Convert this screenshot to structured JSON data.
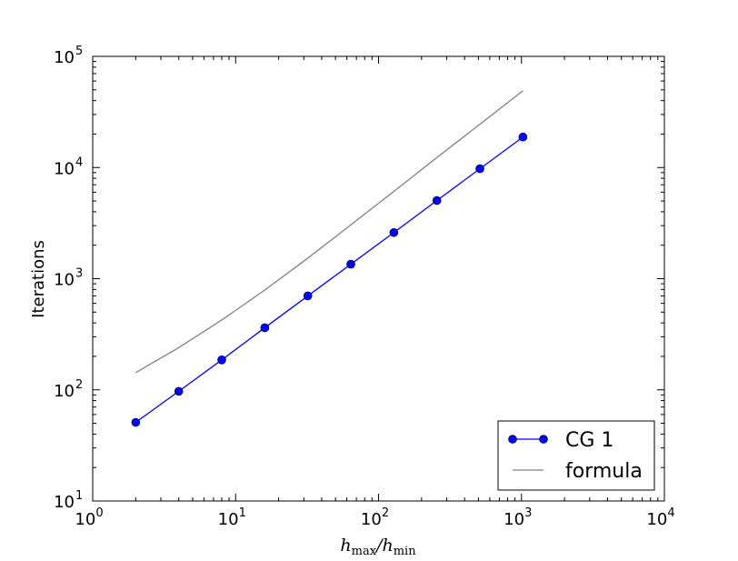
{
  "chart_data": {
    "type": "line",
    "xscale": "log",
    "yscale": "log",
    "xlim": [
      1,
      10000
    ],
    "ylim": [
      10,
      100000
    ],
    "grid": false,
    "legend_placement": "lower-right",
    "xlabel": {
      "h": "h",
      "max": "max",
      "slash": "/",
      "min": "min"
    },
    "ylabel": "Iterations",
    "x_ticks": [
      {
        "base": "10",
        "exp": "0"
      },
      {
        "base": "10",
        "exp": "1"
      },
      {
        "base": "10",
        "exp": "2"
      },
      {
        "base": "10",
        "exp": "3"
      },
      {
        "base": "10",
        "exp": "4"
      }
    ],
    "y_ticks": [
      {
        "base": "10",
        "exp": "1"
      },
      {
        "base": "10",
        "exp": "2"
      },
      {
        "base": "10",
        "exp": "3"
      },
      {
        "base": "10",
        "exp": "4"
      },
      {
        "base": "10",
        "exp": "5"
      }
    ],
    "series": [
      {
        "name": "CG 1",
        "color": "#0000ff",
        "marker": "circle",
        "x": [
          2,
          4,
          8,
          16,
          32,
          64,
          128,
          256,
          512,
          1024
        ],
        "y": [
          51,
          97,
          186,
          362,
          700,
          1350,
          2600,
          5050,
          9750,
          18800
        ]
      },
      {
        "name": "formula",
        "color": "#808080",
        "marker": "none",
        "x": [
          2,
          4,
          8,
          16,
          32,
          64,
          128,
          256,
          512,
          1024
        ],
        "y": [
          143,
          240,
          425,
          790,
          1530,
          3050,
          6100,
          12300,
          24500,
          49000
        ]
      }
    ]
  }
}
